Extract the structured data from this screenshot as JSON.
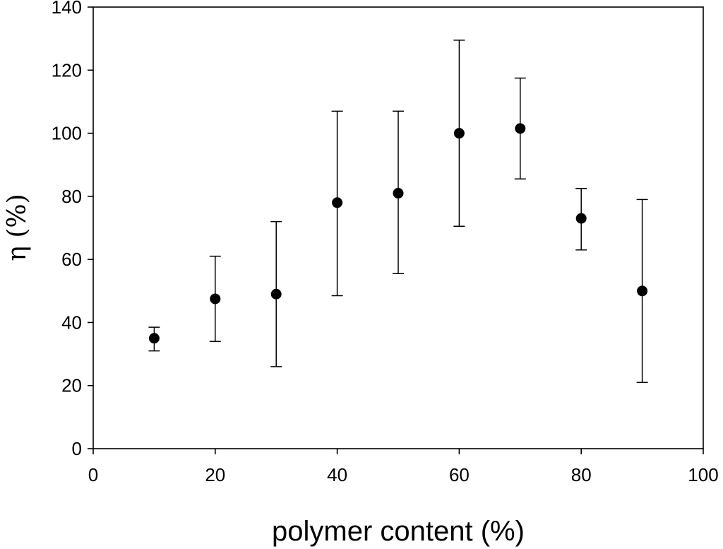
{
  "chart_data": {
    "type": "scatter",
    "title": "",
    "xlabel": "polymer content (%)",
    "ylabel": "η (%)",
    "xlim": [
      0,
      100
    ],
    "ylim": [
      0,
      140
    ],
    "xticks": [
      0,
      20,
      40,
      60,
      80,
      100
    ],
    "yticks": [
      0,
      20,
      40,
      60,
      80,
      100,
      120,
      140
    ],
    "grid": false,
    "legend": "none",
    "marker_color": "#000000",
    "series": [
      {
        "points": [
          {
            "x": 10,
            "y": 35,
            "err_low": 31,
            "err_high": 38.5
          },
          {
            "x": 20,
            "y": 47.5,
            "err_low": 34,
            "err_high": 61
          },
          {
            "x": 30,
            "y": 49,
            "err_low": 26,
            "err_high": 72
          },
          {
            "x": 40,
            "y": 78,
            "err_low": 48.5,
            "err_high": 107
          },
          {
            "x": 50,
            "y": 81,
            "err_low": 55.5,
            "err_high": 107
          },
          {
            "x": 60,
            "y": 100,
            "err_low": 70.5,
            "err_high": 129.5
          },
          {
            "x": 70,
            "y": 101.5,
            "err_low": 85.5,
            "err_high": 117.5
          },
          {
            "x": 80,
            "y": 73,
            "err_low": 63,
            "err_high": 82.5
          },
          {
            "x": 90,
            "y": 50,
            "err_low": 21,
            "err_high": 79
          }
        ]
      }
    ]
  }
}
